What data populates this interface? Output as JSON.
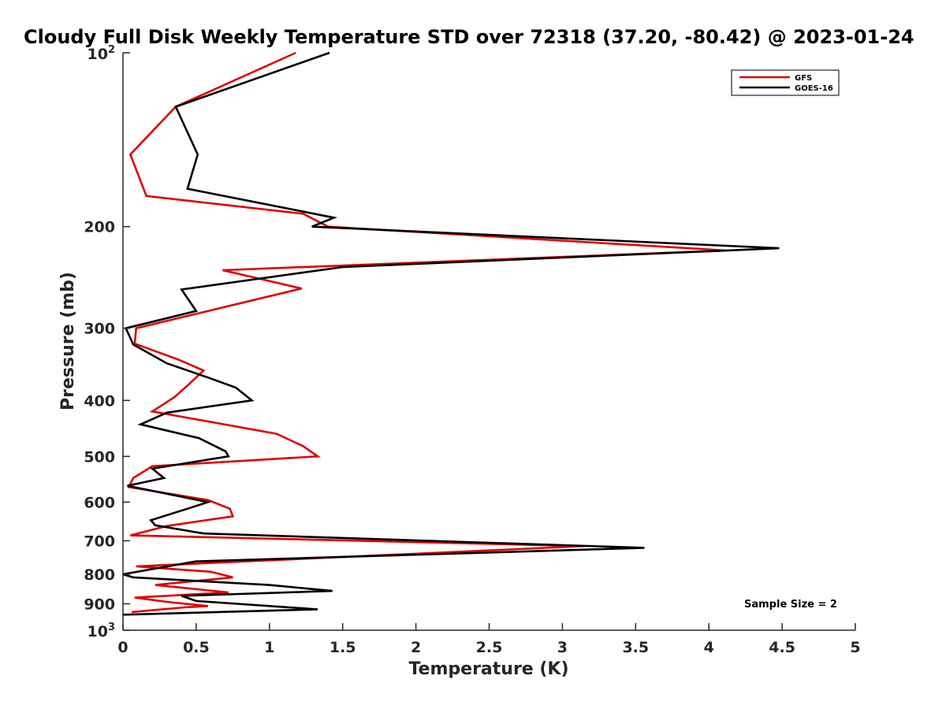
{
  "chart_data": {
    "type": "line",
    "title": "Cloudy Full Disk Weekly Temperature STD over 72318 (37.20, -80.42) @ 2023-01-24",
    "xlabel": "Temperature (K)",
    "ylabel": "Pressure (mb)",
    "xlim": [
      0,
      5
    ],
    "ylim": [
      100,
      1000
    ],
    "yscale": "log",
    "y_reversed": true,
    "x_ticks": [
      0,
      0.5,
      1,
      1.5,
      2,
      2.5,
      3,
      3.5,
      4,
      4.5,
      5
    ],
    "x_tick_labels": [
      "0",
      "0.5",
      "1",
      "1.5",
      "2",
      "2.5",
      "3",
      "3.5",
      "4",
      "4.5",
      "5"
    ],
    "y_ticks": [
      {
        "value": 100,
        "base": "10",
        "exp": "2"
      },
      {
        "value": 200,
        "label": "200"
      },
      {
        "value": 300,
        "label": "300"
      },
      {
        "value": 400,
        "label": "400"
      },
      {
        "value": 500,
        "label": "500"
      },
      {
        "value": 600,
        "label": "600"
      },
      {
        "value": 700,
        "label": "700"
      },
      {
        "value": 800,
        "label": "800"
      },
      {
        "value": 900,
        "label": "900"
      },
      {
        "value": 1000,
        "base": "10",
        "exp": "3"
      }
    ],
    "legend_position": "top-right",
    "annotation": "Sample Size = 2",
    "series": [
      {
        "name": "GFS",
        "color": "#e00000",
        "points": [
          [
            1.18,
            100
          ],
          [
            0.36,
            124
          ],
          [
            0.05,
            150
          ],
          [
            0.16,
            177
          ],
          [
            1.23,
            190
          ],
          [
            1.4,
            200
          ],
          [
            4.12,
            220
          ],
          [
            0.68,
            238
          ],
          [
            1.22,
            256
          ],
          [
            0.84,
            270
          ],
          [
            0.09,
            300
          ],
          [
            0.08,
            319
          ],
          [
            0.38,
            340
          ],
          [
            0.55,
            355
          ],
          [
            0.45,
            375
          ],
          [
            0.35,
            395
          ],
          [
            0.2,
            418
          ],
          [
            1.05,
            457
          ],
          [
            1.23,
            480
          ],
          [
            1.33,
            500
          ],
          [
            0.2,
            520
          ],
          [
            0.07,
            545
          ],
          [
            0.04,
            565
          ],
          [
            0.58,
            595
          ],
          [
            0.73,
            616
          ],
          [
            0.75,
            635
          ],
          [
            0.3,
            660
          ],
          [
            0.05,
            685
          ],
          [
            3.15,
            715
          ],
          [
            0.09,
            775
          ],
          [
            0.6,
            792
          ],
          [
            0.75,
            810
          ],
          [
            0.22,
            835
          ],
          [
            0.72,
            860
          ],
          [
            0.08,
            878
          ],
          [
            0.3,
            893
          ],
          [
            0.58,
            908
          ],
          [
            0.42,
            913
          ],
          [
            0.06,
            930
          ]
        ]
      },
      {
        "name": "GOES-16",
        "color": "#000000",
        "points": [
          [
            1.41,
            100
          ],
          [
            0.36,
            124
          ],
          [
            0.51,
            150
          ],
          [
            0.44,
            172
          ],
          [
            1.44,
            193
          ],
          [
            1.29,
            200
          ],
          [
            4.48,
            218
          ],
          [
            1.5,
            235
          ],
          [
            0.4,
            257
          ],
          [
            0.5,
            280
          ],
          [
            0.02,
            300
          ],
          [
            0.07,
            320
          ],
          [
            0.3,
            345
          ],
          [
            0.58,
            365
          ],
          [
            0.77,
            380
          ],
          [
            0.88,
            400
          ],
          [
            0.3,
            420
          ],
          [
            0.12,
            440
          ],
          [
            0.52,
            465
          ],
          [
            0.7,
            490
          ],
          [
            0.72,
            500
          ],
          [
            0.2,
            525
          ],
          [
            0.28,
            545
          ],
          [
            0.03,
            562
          ],
          [
            0.58,
            600
          ],
          [
            0.45,
            615
          ],
          [
            0.19,
            645
          ],
          [
            0.22,
            658
          ],
          [
            0.55,
            680
          ],
          [
            3.56,
            720
          ],
          [
            0.5,
            760
          ],
          [
            0.0,
            800
          ],
          [
            0.07,
            810
          ],
          [
            1.0,
            835
          ],
          [
            1.43,
            855
          ],
          [
            0.4,
            872
          ],
          [
            0.5,
            890
          ],
          [
            1.33,
            920
          ],
          [
            0.0,
            940
          ]
        ]
      }
    ]
  }
}
